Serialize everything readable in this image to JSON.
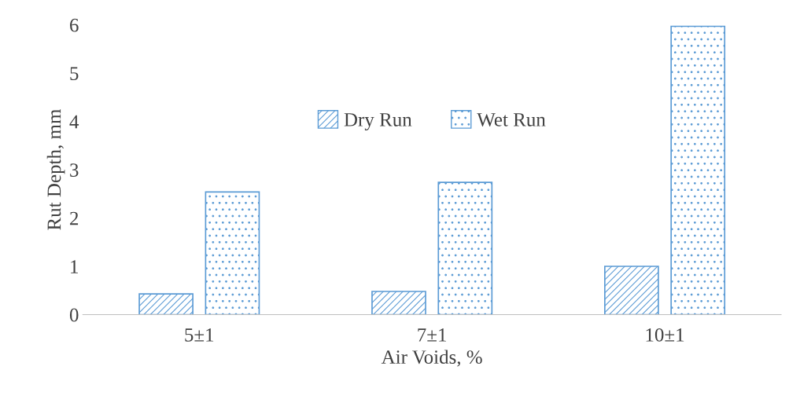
{
  "chart_data": {
    "type": "bar",
    "xlabel": "Air Voids, %",
    "ylabel": "Rut Depth, mm",
    "categories": [
      "5±1",
      "7±1",
      "10±1"
    ],
    "series": [
      {
        "name": "Dry Run",
        "color": "#5b9bd5",
        "values": [
          0.43,
          0.48,
          1.0
        ]
      },
      {
        "name": "Wet Run",
        "color": "#5b9bd5",
        "values": [
          2.54,
          2.74,
          5.97
        ]
      }
    ],
    "ylim": [
      0,
      6
    ],
    "yticks": [
      0,
      1,
      2,
      3,
      4,
      5,
      6
    ],
    "grid": false,
    "legend": "center"
  }
}
